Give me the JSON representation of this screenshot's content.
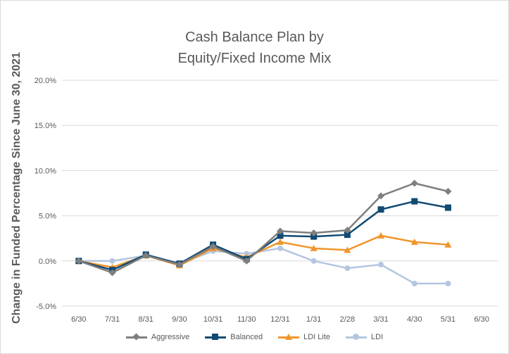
{
  "chart_data": {
    "type": "line",
    "title_lines": [
      "Cash Balance Plan by",
      "Equity/Fixed Income Mix"
    ],
    "ylabel": "Change in Funded Percentage Since June 30, 2021",
    "xlabel": "",
    "categories": [
      "6/30",
      "7/31",
      "8/31",
      "9/30",
      "10/31",
      "11/30",
      "12/31",
      "1/31",
      "2/28",
      "3/31",
      "4/30",
      "5/31",
      "6/30"
    ],
    "yticks": [
      "-5.0%",
      "0.0%",
      "5.0%",
      "10.0%",
      "15.0%",
      "20.0%"
    ],
    "ylim": [
      -5,
      20
    ],
    "grid": true,
    "legend_position": "bottom",
    "series": [
      {
        "name": "Aggressive",
        "color": "#7f7f7f",
        "marker": "diamond",
        "values": [
          0.0,
          -1.3,
          0.6,
          -0.4,
          1.6,
          0.0,
          3.3,
          3.1,
          3.4,
          7.2,
          8.6,
          7.7,
          null
        ]
      },
      {
        "name": "Balanced",
        "color": "#104a73",
        "marker": "square",
        "values": [
          0.0,
          -1.0,
          0.7,
          -0.3,
          1.8,
          0.2,
          2.8,
          2.7,
          2.9,
          5.7,
          6.6,
          5.9,
          null
        ]
      },
      {
        "name": "LDI Lite",
        "color": "#f0962c",
        "marker": "triangle",
        "values": [
          0.0,
          -0.7,
          0.6,
          -0.5,
          1.4,
          0.4,
          2.1,
          1.4,
          1.2,
          2.8,
          2.1,
          1.8,
          null
        ]
      },
      {
        "name": "LDI",
        "color": "#b4c6e0",
        "marker": "circle",
        "values": [
          0.0,
          0.0,
          0.6,
          -0.3,
          1.1,
          0.8,
          1.4,
          0.0,
          -0.8,
          -0.4,
          -2.5,
          -2.5,
          null
        ]
      }
    ]
  }
}
